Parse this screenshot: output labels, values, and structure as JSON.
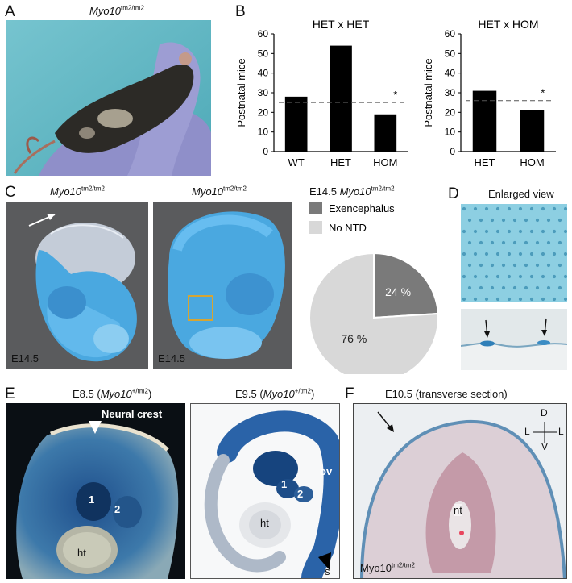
{
  "panels": {
    "A": {
      "letter": "A",
      "title_main": "Myo10",
      "title_sup": "tm2/tm2"
    },
    "B": {
      "letter": "B"
    },
    "C": {
      "letter": "C",
      "embryo_title_main": "Myo10",
      "embryo_title_sup": "tm2/tm2",
      "embryo_stage": "E14.5",
      "pie_title_prefix": "E14.5 ",
      "pie_title_main": "Myo10",
      "pie_title_sup": "tm2/tm2"
    },
    "D": {
      "letter": "D",
      "title": "Enlarged view"
    },
    "E": {
      "letter": "E",
      "left_title_pre": "E8.5 (",
      "left_title_main": "Myo10",
      "left_title_sup": "+/tm2",
      "left_title_post": ")",
      "neural_crest_label": "Neural crest",
      "label_1": "1",
      "label_2": "2",
      "label_ht": "ht",
      "right_title_pre": "E9.5 (",
      "right_title_main": "Myo10",
      "right_title_sup": "+/tm2",
      "right_title_post": ")",
      "label_ov": "ov",
      "label_s": "s"
    },
    "F": {
      "letter": "F",
      "title": "E10.5 (transverse section)",
      "label_nt": "nt",
      "compass_D": "D",
      "compass_V": "V",
      "compass_L": "L",
      "genotype_main": "Myo10",
      "genotype_sup": "tm2/tm2"
    }
  },
  "colors": {
    "bar": "#000000",
    "pie_exencephalus": "#7a7a7a",
    "pie_no_ntd": "#d8d8d8",
    "embryo_bg": "#58595b"
  },
  "chart_data": [
    {
      "type": "bar",
      "title": "HET x HET",
      "categories": [
        "WT",
        "HET",
        "HOM"
      ],
      "values": [
        28,
        54,
        19
      ],
      "expected": 25,
      "significance": [
        "",
        "",
        "*"
      ],
      "ylabel": "Postnatal mice",
      "ylim": [
        0,
        60
      ],
      "yticks": [
        0,
        10,
        20,
        30,
        40,
        50,
        60
      ]
    },
    {
      "type": "bar",
      "title": "HET x HOM",
      "categories": [
        "HET",
        "HOM"
      ],
      "values": [
        31,
        21
      ],
      "expected": 26,
      "significance": [
        "",
        "*"
      ],
      "ylabel": "Postnatal mice",
      "ylim": [
        0,
        60
      ],
      "yticks": [
        0,
        10,
        20,
        30,
        40,
        50,
        60
      ]
    },
    {
      "type": "pie",
      "labels": [
        "Exencephalus",
        "No NTD"
      ],
      "values": [
        24,
        76
      ],
      "value_labels": [
        "24 %",
        "76 %"
      ],
      "colors": [
        "#7a7a7a",
        "#d8d8d8"
      ]
    }
  ]
}
